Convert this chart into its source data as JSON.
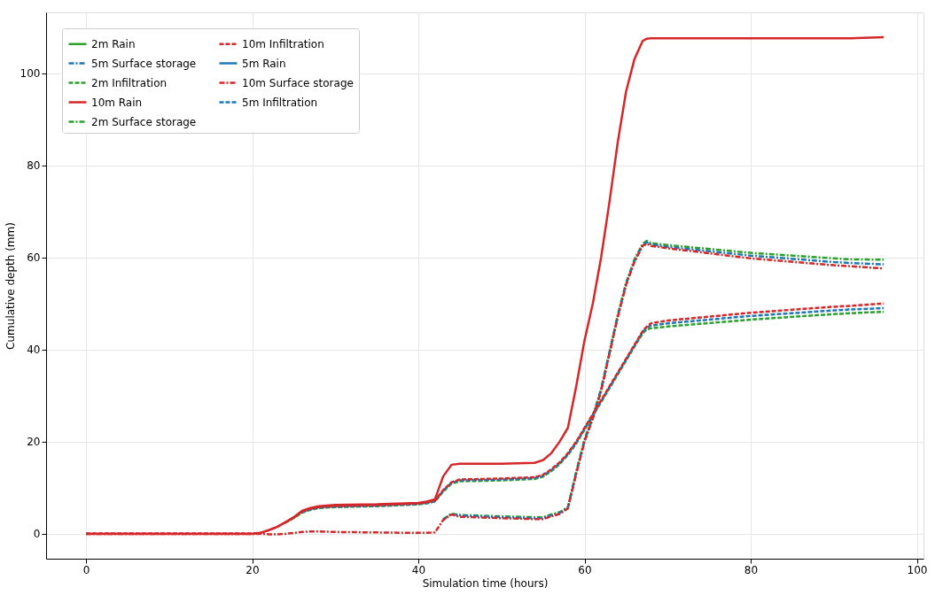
{
  "chart_data": {
    "type": "line",
    "xlabel": "Simulation time (hours)",
    "ylabel": "Cumulative depth (mm)",
    "x": [
      0,
      5,
      10,
      15,
      20,
      21,
      22,
      23,
      24,
      25,
      26,
      27,
      28,
      30,
      35,
      40,
      41,
      42,
      43,
      44,
      45,
      50,
      54,
      55,
      56,
      57,
      58,
      59,
      60,
      61,
      62,
      63,
      64,
      65,
      66,
      67,
      67.5,
      68,
      70,
      80,
      90,
      92,
      96
    ],
    "xlim": [
      -4.8,
      100.8
    ],
    "ylim": [
      -5.4,
      113.2
    ],
    "xticks": [
      0,
      20,
      40,
      60,
      80,
      100
    ],
    "yticks": [
      0,
      20,
      40,
      60,
      80,
      100
    ],
    "grid": true,
    "legend": "top left",
    "marker": "none",
    "series": [
      {
        "name": "2m Rain",
        "color": "#2ca02c",
        "line_style": "solid",
        "values": [
          null,
          null,
          null,
          null,
          null,
          null,
          null,
          null,
          null,
          null,
          null,
          null,
          null,
          null,
          null,
          null,
          null,
          null,
          null,
          null,
          null,
          null,
          null,
          null,
          null,
          null,
          null,
          null,
          null,
          null,
          null,
          null,
          null,
          null,
          null,
          null,
          null,
          null,
          null,
          null,
          null,
          null,
          null
        ]
      },
      {
        "name": "2m Infiltration",
        "color": "#2ca02c",
        "line_style": "dashed",
        "values": [
          null,
          null,
          null,
          null,
          null,
          null,
          null,
          null,
          2.4,
          3.4,
          4.6,
          5.2,
          5.6,
          5.8,
          6.0,
          6.4,
          6.6,
          7.0,
          9.2,
          10.9,
          11.4,
          11.6,
          11.9,
          12.4,
          13.6,
          15.1,
          17.1,
          19.6,
          22.6,
          25.6,
          28.6,
          31.6,
          34.6,
          37.6,
          40.6,
          43.5,
          44.4,
          44.6,
          45.0,
          46.5,
          47.7,
          47.9,
          48.2
        ]
      },
      {
        "name": "2m Surface storage",
        "color": "#2ca02c",
        "line_style": "dashdot",
        "values": [
          null,
          null,
          null,
          null,
          null,
          null,
          null,
          null,
          null,
          null,
          null,
          null,
          null,
          null,
          null,
          null,
          null,
          null,
          3.2,
          4.4,
          4.1,
          3.8,
          3.6,
          3.6,
          4.2,
          4.7,
          5.8,
          13.5,
          20.5,
          25.5,
          31.5,
          39.5,
          47.5,
          54.5,
          59.5,
          63,
          63.6,
          63.1,
          62.7,
          61.0,
          59.8,
          59.6,
          59.5
        ]
      },
      {
        "name": "5m Rain",
        "color": "#1f77b4",
        "line_style": "solid",
        "values": [
          null,
          null,
          null,
          null,
          null,
          null,
          null,
          null,
          null,
          null,
          null,
          null,
          null,
          null,
          null,
          null,
          null,
          null,
          null,
          null,
          null,
          null,
          null,
          null,
          null,
          null,
          null,
          null,
          null,
          null,
          null,
          null,
          null,
          null,
          null,
          null,
          null,
          null,
          null,
          null,
          null,
          null,
          null
        ]
      },
      {
        "name": "5m Infiltration",
        "color": "#1f77b4",
        "line_style": "dashed",
        "values": [
          null,
          null,
          null,
          null,
          null,
          null,
          null,
          null,
          null,
          null,
          4.7,
          5.3,
          5.7,
          5.9,
          6.1,
          6.5,
          6.7,
          7.1,
          9.4,
          11.1,
          11.6,
          11.8,
          12.1,
          12.6,
          13.8,
          15.3,
          17.3,
          19.8,
          22.8,
          25.8,
          28.8,
          31.8,
          34.8,
          37.8,
          40.8,
          43.8,
          44.8,
          45.2,
          45.7,
          47.3,
          48.5,
          48.7,
          49.0
        ]
      },
      {
        "name": "5m Surface storage",
        "color": "#1f77b4",
        "line_style": "dashdot",
        "values": [
          null,
          null,
          null,
          null,
          null,
          null,
          null,
          null,
          null,
          null,
          null,
          null,
          null,
          null,
          null,
          null,
          null,
          null,
          3.1,
          4.3,
          4.0,
          3.6,
          3.4,
          3.4,
          4.0,
          4.5,
          5.6,
          13.2,
          20.2,
          25.2,
          31.2,
          39.2,
          47.2,
          54.2,
          59.2,
          62.7,
          63.3,
          62.8,
          62.3,
          60.4,
          59.0,
          58.8,
          58.5
        ]
      },
      {
        "name": "10m Rain",
        "color": "#d62728",
        "line_style": "solid",
        "values": [
          0,
          0,
          0,
          0,
          0,
          0.2,
          0.8,
          1.5,
          2.5,
          3.6,
          5.0,
          5.6,
          6.0,
          6.3,
          6.4,
          6.7,
          7.0,
          7.5,
          12.5,
          15.0,
          15.2,
          15.2,
          15.4,
          16.0,
          17.5,
          20,
          23,
          32,
          42,
          50,
          60,
          72,
          85,
          96,
          103,
          107,
          107.5,
          107.6,
          107.6,
          107.6,
          107.6,
          107.6,
          107.8
        ]
      },
      {
        "name": "10m Infiltration",
        "color": "#d62728",
        "line_style": "dashed",
        "values": [
          0.1,
          0.1,
          0.1,
          0.1,
          0.1,
          0.2,
          0.8,
          1.5,
          2.5,
          3.5,
          4.8,
          5.4,
          5.8,
          6.0,
          6.2,
          6.6,
          6.8,
          7.2,
          9.5,
          11.2,
          11.8,
          12.0,
          12.3,
          12.8,
          14,
          15.5,
          17.5,
          20,
          23,
          26,
          29,
          32,
          35,
          38,
          41,
          44,
          45,
          45.7,
          46.3,
          48,
          49.3,
          49.5,
          50.0
        ]
      },
      {
        "name": "10m Surface storage",
        "color": "#d62728",
        "line_style": "dashdot",
        "values": [
          0,
          0,
          0,
          0,
          0,
          0,
          -0.1,
          -0.1,
          0,
          0.2,
          0.4,
          0.5,
          0.5,
          0.4,
          0.3,
          0.2,
          0.2,
          0.3,
          3.0,
          4.2,
          3.7,
          3.4,
          3.2,
          3.2,
          3.8,
          4.3,
          5.5,
          13,
          20,
          25,
          31,
          39,
          47,
          54,
          59,
          62.5,
          63,
          62.5,
          62.0,
          59.8,
          58.3,
          58.1,
          57.6
        ]
      }
    ]
  }
}
